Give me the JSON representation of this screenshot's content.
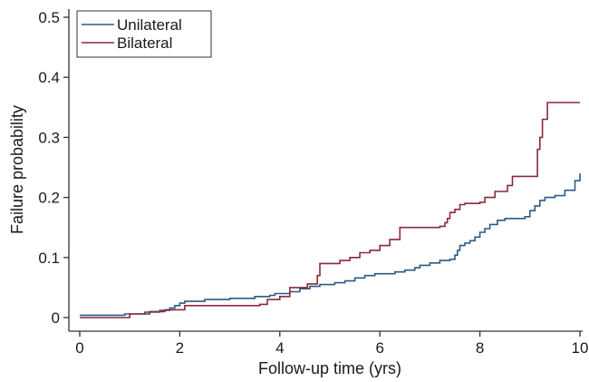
{
  "chart_data": {
    "type": "line",
    "step": true,
    "title": "",
    "xlabel": "Follow-up time (yrs)",
    "ylabel": "Failure probability",
    "xlim": [
      0,
      10
    ],
    "ylim": [
      0,
      0.5
    ],
    "xticks": [
      0,
      2,
      4,
      6,
      8,
      10
    ],
    "yticks": [
      0,
      0.1,
      0.2,
      0.3,
      0.4,
      0.5
    ],
    "xtick_labels": [
      "0",
      "2",
      "4",
      "6",
      "8",
      "10"
    ],
    "ytick_labels": [
      "0",
      "0.1",
      "0.2",
      "0.3",
      "0.4",
      "0.5"
    ],
    "grid": false,
    "legend": {
      "position": "top-left",
      "entries": [
        "Unilateral",
        "Bilateral"
      ]
    },
    "series": [
      {
        "name": "Unilateral",
        "color": "#2b5b84",
        "points": [
          [
            0,
            0.004
          ],
          [
            0.5,
            0.004
          ],
          [
            0.9,
            0.006
          ],
          [
            1.3,
            0.009
          ],
          [
            1.6,
            0.012
          ],
          [
            1.8,
            0.016
          ],
          [
            1.9,
            0.02
          ],
          [
            2.0,
            0.024
          ],
          [
            2.1,
            0.027
          ],
          [
            2.5,
            0.03
          ],
          [
            3.0,
            0.032
          ],
          [
            3.5,
            0.035
          ],
          [
            3.8,
            0.037
          ],
          [
            3.9,
            0.04
          ],
          [
            4.2,
            0.043
          ],
          [
            4.4,
            0.048
          ],
          [
            4.6,
            0.052
          ],
          [
            4.8,
            0.055
          ],
          [
            5.1,
            0.058
          ],
          [
            5.3,
            0.061
          ],
          [
            5.5,
            0.066
          ],
          [
            5.7,
            0.07
          ],
          [
            5.9,
            0.073
          ],
          [
            6.3,
            0.076
          ],
          [
            6.5,
            0.079
          ],
          [
            6.7,
            0.083
          ],
          [
            6.8,
            0.087
          ],
          [
            7.0,
            0.091
          ],
          [
            7.2,
            0.095
          ],
          [
            7.4,
            0.097
          ],
          [
            7.5,
            0.104
          ],
          [
            7.55,
            0.112
          ],
          [
            7.6,
            0.12
          ],
          [
            7.7,
            0.124
          ],
          [
            7.8,
            0.128
          ],
          [
            7.9,
            0.134
          ],
          [
            8.0,
            0.142
          ],
          [
            8.1,
            0.148
          ],
          [
            8.2,
            0.155
          ],
          [
            8.35,
            0.162
          ],
          [
            8.5,
            0.165
          ],
          [
            8.9,
            0.168
          ],
          [
            9.0,
            0.178
          ],
          [
            9.1,
            0.186
          ],
          [
            9.2,
            0.195
          ],
          [
            9.3,
            0.2
          ],
          [
            9.5,
            0.203
          ],
          [
            9.7,
            0.212
          ],
          [
            9.9,
            0.228
          ],
          [
            10.0,
            0.24
          ]
        ]
      },
      {
        "name": "Bilateral",
        "color": "#8c2a3a",
        "points": [
          [
            0,
            0
          ],
          [
            0.9,
            0
          ],
          [
            1.0,
            0.006
          ],
          [
            1.4,
            0.01
          ],
          [
            1.7,
            0.013
          ],
          [
            2.1,
            0.02
          ],
          [
            3.0,
            0.02
          ],
          [
            3.6,
            0.022
          ],
          [
            3.75,
            0.03
          ],
          [
            4.0,
            0.035
          ],
          [
            4.2,
            0.05
          ],
          [
            4.55,
            0.056
          ],
          [
            4.75,
            0.07
          ],
          [
            4.8,
            0.09
          ],
          [
            5.2,
            0.095
          ],
          [
            5.4,
            0.1
          ],
          [
            5.6,
            0.108
          ],
          [
            5.8,
            0.112
          ],
          [
            6.0,
            0.12
          ],
          [
            6.2,
            0.13
          ],
          [
            6.4,
            0.15
          ],
          [
            7.2,
            0.152
          ],
          [
            7.3,
            0.158
          ],
          [
            7.35,
            0.165
          ],
          [
            7.4,
            0.175
          ],
          [
            7.5,
            0.18
          ],
          [
            7.6,
            0.188
          ],
          [
            7.7,
            0.19
          ],
          [
            8.0,
            0.192
          ],
          [
            8.1,
            0.2
          ],
          [
            8.3,
            0.21
          ],
          [
            8.55,
            0.22
          ],
          [
            8.65,
            0.235
          ],
          [
            9.1,
            0.235
          ],
          [
            9.15,
            0.28
          ],
          [
            9.2,
            0.3
          ],
          [
            9.25,
            0.33
          ],
          [
            9.35,
            0.358
          ],
          [
            10.0,
            0.358
          ]
        ]
      }
    ]
  }
}
